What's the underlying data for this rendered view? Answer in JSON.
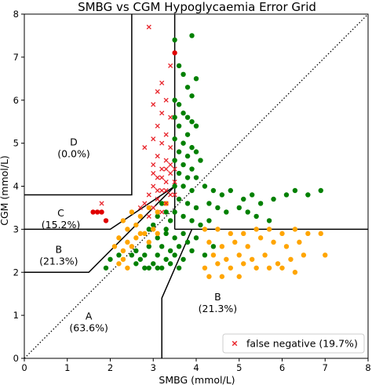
{
  "chart_data": {
    "type": "scatter",
    "title": "SMBG vs CGM Hypoglycaemia Error Grid",
    "xlabel": "SMBG (mmol/L)",
    "ylabel": "CGM (mmol/L)",
    "xlim": [
      0,
      8
    ],
    "ylim": [
      0,
      8
    ],
    "x_ticks": [
      "0",
      "1",
      "2",
      "3",
      "4",
      "5",
      "6",
      "7",
      "8"
    ],
    "y_ticks": [
      "0",
      "1",
      "2",
      "3",
      "4",
      "5",
      "6",
      "7",
      "8"
    ],
    "grid": false,
    "legend_position": "bottom-right",
    "colors": {
      "green": "#008000",
      "orange": "#ffa500",
      "red": "#e00000",
      "false_negative": "#e8232a",
      "dotted_line": "#000000"
    },
    "zones": [
      {
        "label": "A",
        "sub": "(63.6%)",
        "x": 1.5,
        "y": 0.9
      },
      {
        "label": "B",
        "sub": "(21.3%)",
        "x": 0.8,
        "y": 2.45
      },
      {
        "label": "B",
        "sub": "(21.3%)",
        "x": 4.5,
        "y": 1.35
      },
      {
        "label": "C",
        "sub": "(15.2%)",
        "x": 0.85,
        "y": 3.3
      },
      {
        "label": "D",
        "sub": "(0.0%)",
        "x": 1.15,
        "y": 4.95
      }
    ],
    "boundaries": [
      [
        [
          2.5,
          8
        ],
        [
          2.5,
          3.8
        ],
        [
          0,
          3.8
        ]
      ],
      [
        [
          3.5,
          8
        ],
        [
          3.5,
          3.0
        ]
      ],
      [
        [
          3.5,
          3.0
        ],
        [
          8,
          3.0
        ]
      ],
      [
        [
          0,
          3.0
        ],
        [
          2.0,
          3.0
        ],
        [
          3.5,
          4.0
        ]
      ],
      [
        [
          0,
          2.0
        ],
        [
          1.5,
          2.0
        ],
        [
          3.5,
          4.0
        ]
      ],
      [
        [
          3.2,
          0
        ],
        [
          3.2,
          1.4
        ],
        [
          3.9,
          3.0
        ]
      ]
    ],
    "identity_line": [
      [
        0,
        0
      ],
      [
        8,
        8
      ]
    ],
    "legend": [
      {
        "marker": "x",
        "label": "false negative (19.7%)"
      }
    ],
    "series": [
      {
        "name": "",
        "marker": "circle",
        "color": "green",
        "points": [
          [
            3.5,
            7.4
          ],
          [
            3.9,
            7.5
          ],
          [
            3.6,
            6.8
          ],
          [
            3.7,
            6.6
          ],
          [
            3.8,
            6.3
          ],
          [
            3.9,
            6.1
          ],
          [
            4.0,
            6.5
          ],
          [
            3.5,
            6.0
          ],
          [
            3.6,
            5.9
          ],
          [
            3.7,
            5.7
          ],
          [
            3.5,
            5.6
          ],
          [
            3.8,
            5.6
          ],
          [
            3.6,
            5.4
          ],
          [
            3.9,
            5.5
          ],
          [
            3.8,
            5.2
          ],
          [
            4.0,
            5.4
          ],
          [
            3.5,
            5.1
          ],
          [
            3.7,
            5.0
          ],
          [
            3.9,
            4.9
          ],
          [
            3.6,
            4.8
          ],
          [
            3.8,
            4.7
          ],
          [
            4.0,
            4.8
          ],
          [
            3.5,
            4.6
          ],
          [
            3.7,
            4.5
          ],
          [
            3.9,
            4.4
          ],
          [
            4.1,
            4.6
          ],
          [
            3.6,
            4.3
          ],
          [
            3.8,
            4.2
          ],
          [
            4.0,
            4.2
          ],
          [
            3.5,
            4.0
          ],
          [
            3.7,
            4.0
          ],
          [
            3.9,
            3.9
          ],
          [
            4.2,
            4.0
          ],
          [
            4.4,
            3.9
          ],
          [
            4.6,
            3.8
          ],
          [
            4.8,
            3.9
          ],
          [
            5.1,
            3.7
          ],
          [
            5.3,
            3.8
          ],
          [
            5.5,
            3.6
          ],
          [
            5.8,
            3.7
          ],
          [
            6.1,
            3.8
          ],
          [
            6.3,
            3.9
          ],
          [
            6.6,
            3.8
          ],
          [
            6.9,
            3.9
          ],
          [
            5.0,
            3.5
          ],
          [
            5.2,
            3.4
          ],
          [
            5.4,
            3.3
          ],
          [
            5.7,
            3.2
          ],
          [
            4.3,
            3.6
          ],
          [
            4.5,
            3.5
          ],
          [
            4.7,
            3.4
          ],
          [
            3.6,
            3.7
          ],
          [
            3.8,
            3.6
          ],
          [
            4.0,
            3.5
          ],
          [
            3.5,
            3.4
          ],
          [
            3.7,
            3.3
          ],
          [
            3.9,
            3.2
          ],
          [
            4.1,
            3.1
          ],
          [
            4.3,
            3.2
          ],
          [
            3.2,
            3.6
          ],
          [
            3.3,
            3.4
          ],
          [
            3.4,
            3.2
          ],
          [
            3.1,
            3.3
          ],
          [
            3.0,
            3.1
          ],
          [
            3.3,
            3.0
          ],
          [
            2.9,
            3.0
          ],
          [
            3.1,
            2.8
          ],
          [
            3.3,
            2.9
          ],
          [
            3.5,
            2.8
          ],
          [
            3.7,
            2.9
          ],
          [
            3.2,
            2.6
          ],
          [
            3.4,
            2.5
          ],
          [
            3.6,
            2.6
          ],
          [
            3.8,
            2.7
          ],
          [
            4.0,
            2.8
          ],
          [
            2.9,
            2.6
          ],
          [
            3.1,
            2.4
          ],
          [
            3.3,
            2.3
          ],
          [
            3.5,
            2.4
          ],
          [
            3.7,
            2.3
          ],
          [
            3.9,
            2.5
          ],
          [
            2.8,
            2.4
          ],
          [
            3.0,
            2.2
          ],
          [
            3.2,
            2.1
          ],
          [
            3.4,
            2.2
          ],
          [
            3.6,
            2.1
          ],
          [
            2.6,
            2.5
          ],
          [
            2.7,
            2.3
          ],
          [
            2.8,
            2.1
          ],
          [
            2.9,
            2.1
          ],
          [
            3.1,
            2.1
          ],
          [
            2.5,
            2.4
          ],
          [
            2.6,
            2.2
          ],
          [
            4.2,
            2.4
          ],
          [
            4.4,
            2.6
          ],
          [
            1.9,
            2.1
          ],
          [
            2.0,
            2.3
          ],
          [
            2.2,
            2.4
          ]
        ]
      },
      {
        "name": "",
        "marker": "circle",
        "color": "orange",
        "points": [
          [
            2.3,
            3.2
          ],
          [
            2.5,
            3.4
          ],
          [
            2.7,
            3.3
          ],
          [
            2.9,
            3.5
          ],
          [
            3.1,
            3.4
          ],
          [
            3.3,
            3.6
          ],
          [
            2.4,
            3.0
          ],
          [
            2.6,
            3.1
          ],
          [
            2.8,
            2.9
          ],
          [
            3.0,
            3.0
          ],
          [
            2.2,
            2.8
          ],
          [
            2.4,
            2.7
          ],
          [
            2.6,
            2.8
          ],
          [
            2.1,
            2.6
          ],
          [
            2.3,
            2.5
          ],
          [
            2.5,
            2.6
          ],
          [
            2.3,
            2.3
          ],
          [
            2.4,
            2.1
          ],
          [
            2.2,
            2.2
          ],
          [
            4.2,
            3.0
          ],
          [
            4.5,
            3.0
          ],
          [
            4.8,
            2.9
          ],
          [
            5.1,
            2.9
          ],
          [
            5.4,
            3.0
          ],
          [
            5.7,
            3.0
          ],
          [
            6.0,
            2.9
          ],
          [
            6.3,
            3.0
          ],
          [
            6.6,
            2.9
          ],
          [
            6.9,
            2.9
          ],
          [
            4.3,
            2.7
          ],
          [
            4.6,
            2.6
          ],
          [
            4.9,
            2.7
          ],
          [
            5.2,
            2.6
          ],
          [
            5.5,
            2.8
          ],
          [
            5.8,
            2.7
          ],
          [
            6.1,
            2.6
          ],
          [
            6.4,
            2.7
          ],
          [
            4.4,
            2.4
          ],
          [
            4.7,
            2.3
          ],
          [
            5.0,
            2.4
          ],
          [
            5.3,
            2.3
          ],
          [
            5.6,
            2.4
          ],
          [
            5.9,
            2.2
          ],
          [
            6.2,
            2.3
          ],
          [
            6.5,
            2.4
          ],
          [
            7.0,
            2.4
          ],
          [
            4.2,
            2.1
          ],
          [
            4.5,
            2.2
          ],
          [
            4.8,
            2.1
          ],
          [
            5.1,
            2.2
          ],
          [
            5.4,
            2.1
          ],
          [
            5.7,
            2.1
          ],
          [
            6.0,
            2.1
          ],
          [
            6.3,
            2.0
          ],
          [
            4.3,
            1.9
          ],
          [
            4.6,
            1.9
          ],
          [
            5.0,
            1.9
          ],
          [
            2.7,
            2.9
          ],
          [
            2.9,
            2.7
          ],
          [
            3.1,
            2.9
          ]
        ]
      },
      {
        "name": "",
        "marker": "circle",
        "color": "red",
        "points": [
          [
            3.5,
            7.1
          ],
          [
            1.6,
            3.4
          ],
          [
            1.7,
            3.4
          ],
          [
            1.8,
            3.4
          ],
          [
            1.9,
            3.2
          ]
        ]
      },
      {
        "name": "false negative (19.7%)",
        "marker": "x",
        "color": "false_negative",
        "points": [
          [
            2.9,
            7.7
          ],
          [
            3.4,
            6.8
          ],
          [
            3.2,
            6.4
          ],
          [
            3.1,
            6.2
          ],
          [
            3.3,
            6.0
          ],
          [
            3.0,
            5.9
          ],
          [
            3.2,
            5.7
          ],
          [
            3.4,
            5.6
          ],
          [
            3.1,
            5.4
          ],
          [
            3.3,
            5.2
          ],
          [
            3.0,
            5.1
          ],
          [
            3.2,
            5.0
          ],
          [
            3.4,
            4.9
          ],
          [
            2.8,
            4.9
          ],
          [
            3.1,
            4.7
          ],
          [
            3.3,
            4.6
          ],
          [
            3.0,
            4.5
          ],
          [
            3.2,
            4.4
          ],
          [
            3.4,
            4.3
          ],
          [
            3.1,
            4.2
          ],
          [
            3.3,
            4.1
          ],
          [
            3.0,
            4.0
          ],
          [
            3.2,
            3.9
          ],
          [
            3.4,
            3.8
          ],
          [
            2.9,
            3.8
          ],
          [
            3.1,
            3.7
          ],
          [
            3.3,
            3.6
          ],
          [
            2.8,
            3.6
          ],
          [
            3.0,
            3.5
          ],
          [
            3.2,
            3.4
          ],
          [
            2.7,
            3.5
          ],
          [
            2.9,
            3.3
          ],
          [
            1.8,
            3.6
          ],
          [
            3.5,
            4.4
          ],
          [
            3.5,
            4.1
          ],
          [
            3.5,
            3.8
          ],
          [
            3.4,
            4.5
          ],
          [
            3.2,
            4.2
          ],
          [
            3.0,
            4.3
          ],
          [
            3.3,
            3.9
          ],
          [
            3.1,
            3.9
          ],
          [
            3.3,
            4.4
          ]
        ]
      }
    ]
  }
}
